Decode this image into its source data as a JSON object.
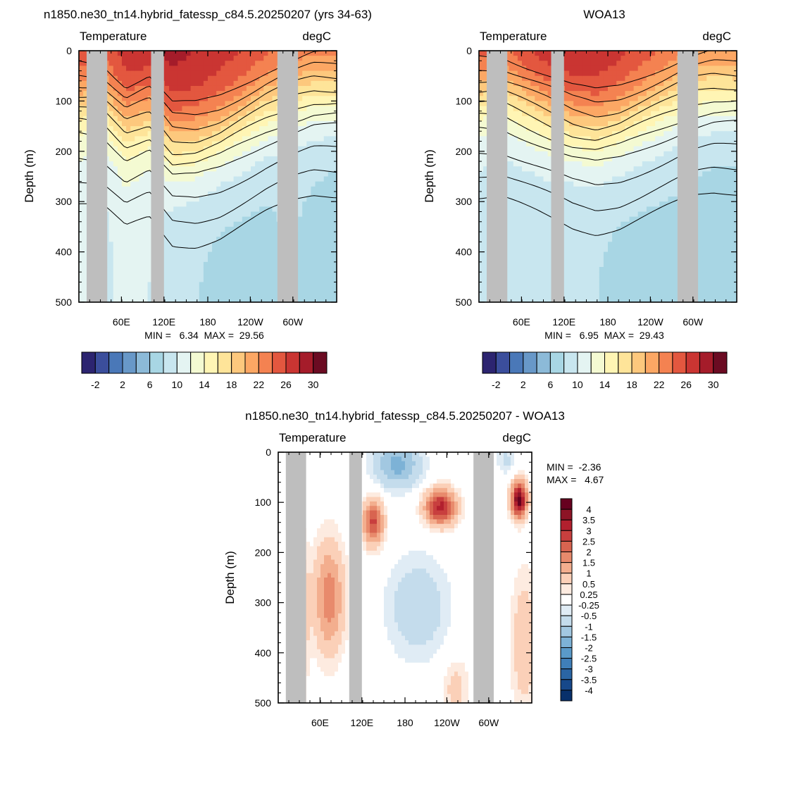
{
  "panels": [
    {
      "id": "model",
      "title": "n1850.ne30_tn14.hybrid_fatessp_c84.5.20250207 (yrs 34-63)",
      "left_label": "Temperature",
      "right_label": "degC",
      "ylabel": "Depth (m)",
      "yticks": [
        "0",
        "100",
        "200",
        "300",
        "400",
        "500"
      ],
      "xticks": [
        "60E",
        "120E",
        "180",
        "120W",
        "60W"
      ],
      "stats": "MIN =   6.34  MAX =  29.56",
      "mixed_layer_top": [
        29.0,
        26.5,
        28.5,
        29.3,
        29.5,
        28.8,
        28.0,
        27.5,
        26.5,
        26.0,
        26.5,
        27.0
      ],
      "thermocline_depth": [
        90,
        95,
        140,
        120,
        175,
        175,
        160,
        135,
        110,
        90,
        75,
        75
      ],
      "deep_temp": [
        10.5,
        9.5,
        10.5,
        10.0,
        8.5,
        8.0,
        7.5,
        7.5,
        7.5,
        8.0,
        7.5,
        7.0
      ],
      "deep_max_depth": [
        430,
        430,
        480,
        480,
        500,
        500,
        500,
        500,
        500,
        500,
        500,
        500
      ]
    },
    {
      "id": "obs",
      "title": "WOA13",
      "left_label": "Temperature",
      "right_label": "degC",
      "ylabel": "Depth (m)",
      "yticks": [
        "0",
        "100",
        "200",
        "300",
        "400",
        "500"
      ],
      "xticks": [
        "60E",
        "120E",
        "180",
        "120W",
        "60W"
      ],
      "stats": "MIN =   6.95  MAX =  29.43",
      "mixed_layer_top": [
        28.5,
        26.5,
        28.5,
        29.3,
        29.4,
        29.0,
        28.0,
        27.0,
        26.0,
        25.5,
        26.0,
        26.5
      ],
      "thermocline_depth": [
        80,
        80,
        100,
        120,
        140,
        150,
        140,
        120,
        100,
        80,
        70,
        70
      ],
      "deep_temp": [
        9.0,
        8.5,
        8.5,
        8.5,
        8.0,
        8.0,
        7.5,
        7.5,
        7.5,
        7.5,
        7.0,
        7.0
      ],
      "deep_max_depth": [
        420,
        420,
        440,
        450,
        480,
        480,
        480,
        480,
        480,
        480,
        500,
        500
      ]
    }
  ],
  "colorbar": {
    "colors": [
      "#2c2470",
      "#3b4e9c",
      "#4a78b8",
      "#6898c8",
      "#8cbad8",
      "#a8d6e4",
      "#c8e6ef",
      "#e4f4f2",
      "#f4fad2",
      "#fff5b4",
      "#fee499",
      "#fdc87d",
      "#fca764",
      "#f48251",
      "#e3573f",
      "#ca3532",
      "#a51c2a",
      "#6b0b22"
    ],
    "labels": [
      "-2",
      "2",
      "6",
      "10",
      "14",
      "18",
      "22",
      "26",
      "30"
    ]
  },
  "diff_panel": {
    "title": "n1850.ne30_tn14.hybrid_fatessp_c84.5.20250207 - WOA13",
    "left_label": "Temperature",
    "right_label": "degC",
    "ylabel": "Depth (m)",
    "yticks": [
      "0",
      "100",
      "200",
      "300",
      "400",
      "500"
    ],
    "xticks": [
      "60E",
      "120E",
      "180",
      "120W",
      "60W"
    ],
    "stats": [
      "MIN =  -2.36",
      "MAX =   4.67"
    ],
    "colorbar_colors": [
      "#67001f",
      "#8d1426",
      "#b2202e",
      "#c83f3e",
      "#d86450",
      "#e88a6c",
      "#f3ae8e",
      "#fbd0b8",
      "#fdebe0",
      "#ffffff",
      "#e0ecf5",
      "#c4dcec",
      "#a2c8e1",
      "#7db2d6",
      "#5a9ac9",
      "#3f7fb9",
      "#2a65a4",
      "#17488a",
      "#08306b"
    ],
    "colorbar_labels": [
      "4",
      "3.5",
      "3",
      "2.5",
      "2",
      "1.5",
      "1",
      "0.5",
      "0.25",
      "-0.25",
      "-0.5",
      "-1",
      "-1.5",
      "-2",
      "-2.5",
      "-3",
      "-3.5",
      "-4"
    ]
  },
  "chart_data": [
    {
      "type": "heatmap",
      "title": "n1850.ne30_tn14.hybrid_fatessp_c84.5.20250207 (yrs 34-63)",
      "variable": "Temperature",
      "units": "degC",
      "ylabel": "Depth (m)",
      "ylim": [
        500,
        0
      ],
      "xticks": [
        "60E",
        "120E",
        "180",
        "120W",
        "60W"
      ],
      "min": 6.34,
      "max": 29.56
    },
    {
      "type": "heatmap",
      "title": "WOA13",
      "variable": "Temperature",
      "units": "degC",
      "ylabel": "Depth (m)",
      "ylim": [
        500,
        0
      ],
      "xticks": [
        "60E",
        "120E",
        "180",
        "120W",
        "60W"
      ],
      "min": 6.95,
      "max": 29.43
    },
    {
      "type": "heatmap",
      "title": "n1850.ne30_tn14.hybrid_fatessp_c84.5.20250207 - WOA13",
      "variable": "Temperature",
      "units": "degC",
      "ylabel": "Depth (m)",
      "ylim": [
        500,
        0
      ],
      "xticks": [
        "60E",
        "120E",
        "180",
        "120W",
        "60W"
      ],
      "min": -2.36,
      "max": 4.67
    }
  ]
}
